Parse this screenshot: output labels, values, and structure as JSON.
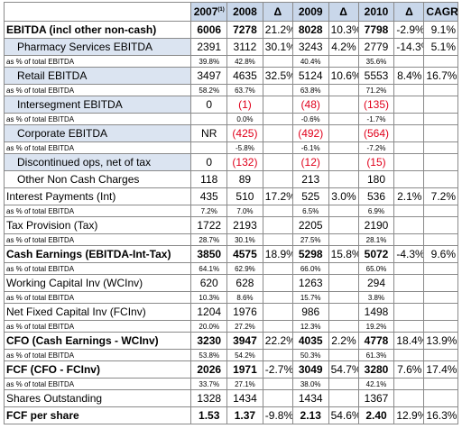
{
  "header": {
    "y2007": "2007",
    "y2007_note": "(1)",
    "y2008": "2008",
    "d2008": "Δ",
    "y2009": "2009",
    "d2009": "Δ",
    "y2010": "2010",
    "d2010": "Δ",
    "cagr": "CAGR"
  },
  "rows": [
    {
      "label": "EBITDA (incl other non-cash)",
      "v2007": "6006",
      "v2008": "7278",
      "d2008": "21.2%",
      "v2009": "8028",
      "d2009": "10.3%",
      "v2010": "7798",
      "d2010": "-2.9%",
      "cagr": "9.1%"
    },
    {
      "label": "Pharmacy Services EBITDA",
      "v2007": "2391",
      "v2008": "3112",
      "d2008": "30.1%",
      "v2009": "3243",
      "d2009": "4.2%",
      "v2010": "2779",
      "d2010": "-14.3%",
      "cagr": "5.1%"
    },
    {
      "label": "as % of total EBITDA",
      "v2007": "39.8%",
      "v2008": "42.8%",
      "d2008": "",
      "v2009": "40.4%",
      "d2009": "",
      "v2010": "35.6%",
      "d2010": "",
      "cagr": ""
    },
    {
      "label": "Retail EBITDA",
      "v2007": "3497",
      "v2008": "4635",
      "d2008": "32.5%",
      "v2009": "5124",
      "d2009": "10.6%",
      "v2010": "5553",
      "d2010": "8.4%",
      "cagr": "16.7%"
    },
    {
      "label": "as % of total EBITDA",
      "v2007": "58.2%",
      "v2008": "63.7%",
      "d2008": "",
      "v2009": "63.8%",
      "d2009": "",
      "v2010": "71.2%",
      "d2010": "",
      "cagr": ""
    },
    {
      "label": "Intersegment EBITDA",
      "v2007": "0",
      "v2008": "(1)",
      "d2008": "",
      "v2009": "(48)",
      "d2009": "",
      "v2010": "(135)",
      "d2010": "",
      "cagr": ""
    },
    {
      "label": "as % of total EBITDA",
      "v2007": "",
      "v2008": "0.0%",
      "d2008": "",
      "v2009": "-0.6%",
      "d2009": "",
      "v2010": "-1.7%",
      "d2010": "",
      "cagr": ""
    },
    {
      "label": "Corporate EBITDA",
      "v2007": "NR",
      "v2008": "(425)",
      "d2008": "",
      "v2009": "(492)",
      "d2009": "",
      "v2010": "(564)",
      "d2010": "",
      "cagr": ""
    },
    {
      "label": "as % of total EBITDA",
      "v2007": "",
      "v2008": "-5.8%",
      "d2008": "",
      "v2009": "-6.1%",
      "d2009": "",
      "v2010": "-7.2%",
      "d2010": "",
      "cagr": ""
    },
    {
      "label": "Discontinued ops, net of tax",
      "v2007": "0",
      "v2008": "(132)",
      "d2008": "",
      "v2009": "(12)",
      "d2009": "",
      "v2010": "(15)",
      "d2010": "",
      "cagr": ""
    },
    {
      "label": "Other Non Cash Charges",
      "v2007": "118",
      "v2008": "89",
      "d2008": "",
      "v2009": "213",
      "d2009": "",
      "v2010": "180",
      "d2010": "",
      "cagr": ""
    },
    {
      "label": "Interest Payments (Int)",
      "v2007": "435",
      "v2008": "510",
      "d2008": "17.2%",
      "v2009": "525",
      "d2009": "3.0%",
      "v2010": "536",
      "d2010": "2.1%",
      "cagr": "7.2%"
    },
    {
      "label": "as % of total EBITDA",
      "v2007": "7.2%",
      "v2008": "7.0%",
      "d2008": "",
      "v2009": "6.5%",
      "d2009": "",
      "v2010": "6.9%",
      "d2010": "",
      "cagr": ""
    },
    {
      "label": "Tax Provision (Tax)",
      "v2007": "1722",
      "v2008": "2193",
      "d2008": "",
      "v2009": "2205",
      "d2009": "",
      "v2010": "2190",
      "d2010": "",
      "cagr": ""
    },
    {
      "label": "as % of total EBITDA",
      "v2007": "28.7%",
      "v2008": "30.1%",
      "d2008": "",
      "v2009": "27.5%",
      "d2009": "",
      "v2010": "28.1%",
      "d2010": "",
      "cagr": ""
    },
    {
      "label": "Cash Earnings (EBITDA-Int-Tax)",
      "v2007": "3850",
      "v2008": "4575",
      "d2008": "18.9%",
      "v2009": "5298",
      "d2009": "15.8%",
      "v2010": "5072",
      "d2010": "-4.3%",
      "cagr": "9.6%"
    },
    {
      "label": "as % of total EBITDA",
      "v2007": "64.1%",
      "v2008": "62.9%",
      "d2008": "",
      "v2009": "66.0%",
      "d2009": "",
      "v2010": "65.0%",
      "d2010": "",
      "cagr": ""
    },
    {
      "label": "Working Capital Inv (WCInv)",
      "v2007": "620",
      "v2008": "628",
      "d2008": "",
      "v2009": "1263",
      "d2009": "",
      "v2010": "294",
      "d2010": "",
      "cagr": ""
    },
    {
      "label": "as % of total EBITDA",
      "v2007": "10.3%",
      "v2008": "8.6%",
      "d2008": "",
      "v2009": "15.7%",
      "d2009": "",
      "v2010": "3.8%",
      "d2010": "",
      "cagr": ""
    },
    {
      "label": "Net Fixed Capital Inv (FCInv)",
      "v2007": "1204",
      "v2008": "1976",
      "d2008": "",
      "v2009": "986",
      "d2009": "",
      "v2010": "1498",
      "d2010": "",
      "cagr": ""
    },
    {
      "label": "as % of total EBITDA",
      "v2007": "20.0%",
      "v2008": "27.2%",
      "d2008": "",
      "v2009": "12.3%",
      "d2009": "",
      "v2010": "19.2%",
      "d2010": "",
      "cagr": ""
    },
    {
      "label": "CFO (Cash Earnings - WCInv)",
      "v2007": "3230",
      "v2008": "3947",
      "d2008": "22.2%",
      "v2009": "4035",
      "d2009": "2.2%",
      "v2010": "4778",
      "d2010": "18.4%",
      "cagr": "13.9%"
    },
    {
      "label": "as % of total EBITDA",
      "v2007": "53.8%",
      "v2008": "54.2%",
      "d2008": "",
      "v2009": "50.3%",
      "d2009": "",
      "v2010": "61.3%",
      "d2010": "",
      "cagr": ""
    },
    {
      "label": "FCF (CFO - FCInv)",
      "v2007": "2026",
      "v2008": "1971",
      "d2008": "-2.7%",
      "v2009": "3049",
      "d2009": "54.7%",
      "v2010": "3280",
      "d2010": "7.6%",
      "cagr": "17.4%"
    },
    {
      "label": "as % of total EBITDA",
      "v2007": "33.7%",
      "v2008": "27.1%",
      "d2008": "",
      "v2009": "38.0%",
      "d2009": "",
      "v2010": "42.1%",
      "d2010": "",
      "cagr": ""
    },
    {
      "label": "Shares Outstanding",
      "v2007": "1328",
      "v2008": "1434",
      "d2008": "",
      "v2009": "1434",
      "d2009": "",
      "v2010": "1367",
      "d2010": "",
      "cagr": ""
    },
    {
      "label": "FCF per share",
      "v2007": "1.53",
      "v2008": "1.37",
      "d2008": "-9.8%",
      "v2009": "2.13",
      "d2009": "54.6%",
      "v2010": "2.40",
      "d2010": "12.9%",
      "cagr": "16.3%"
    }
  ]
}
